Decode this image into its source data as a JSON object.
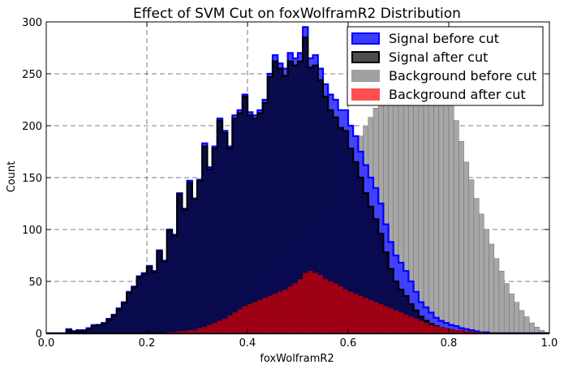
{
  "chart_data": {
    "type": "histogram",
    "title": "Effect of SVM Cut on foxWolframR2 Distribution",
    "xlabel": "foxWolframR2",
    "ylabel": "Count",
    "xlim": [
      0.0,
      1.0
    ],
    "ylim": [
      0,
      300
    ],
    "xticks": [
      "0.0",
      "0.2",
      "0.4",
      "0.6",
      "0.8",
      "1.0"
    ],
    "yticks": [
      "0",
      "50",
      "100",
      "150",
      "200",
      "250",
      "300"
    ],
    "grid": true,
    "legend_position": "upper-right",
    "bin_width": 0.01,
    "bin_start": 0.0,
    "series": [
      {
        "name": "Background before cut",
        "color": "#a0a0a0",
        "style": "filled",
        "values": [
          0,
          0,
          0,
          0,
          0,
          0,
          0,
          0,
          0,
          0,
          0,
          0,
          0,
          0,
          1,
          1,
          1,
          2,
          2,
          3,
          3,
          4,
          4,
          5,
          6,
          7,
          8,
          9,
          10,
          12,
          13,
          15,
          17,
          19,
          22,
          25,
          27,
          30,
          33,
          36,
          40,
          44,
          48,
          52,
          56,
          61,
          66,
          72,
          78,
          84,
          90,
          97,
          104,
          112,
          120,
          128,
          136,
          145,
          154,
          163,
          172,
          181,
          190,
          199,
          208,
          217,
          227,
          236,
          245,
          254,
          263,
          272,
          280,
          288,
          295,
          292,
          285,
          270,
          255,
          240,
          225,
          205,
          185,
          165,
          148,
          130,
          115,
          100,
          86,
          72,
          60,
          48,
          38,
          30,
          22,
          16,
          10,
          6,
          3,
          1
        ]
      },
      {
        "name": "Signal before cut",
        "color": "#0000ff",
        "style": "step-filled",
        "values": [
          0,
          0,
          0,
          0,
          4,
          2,
          3,
          3,
          5,
          8,
          8,
          10,
          14,
          18,
          24,
          30,
          40,
          45,
          55,
          58,
          65,
          60,
          80,
          70,
          100,
          95,
          135,
          120,
          147,
          130,
          148,
          183,
          160,
          180,
          207,
          195,
          180,
          210,
          215,
          230,
          213,
          210,
          215,
          225,
          250,
          268,
          260,
          255,
          270,
          265,
          270,
          295,
          265,
          268,
          255,
          240,
          230,
          225,
          215,
          215,
          200,
          190,
          175,
          162,
          150,
          140,
          125,
          105,
          88,
          75,
          68,
          60,
          50,
          40,
          30,
          25,
          20,
          15,
          12,
          10,
          8,
          7,
          5,
          4,
          3,
          2,
          1,
          1,
          0,
          0,
          0,
          0,
          0,
          0,
          0,
          0,
          0,
          0,
          0,
          0
        ]
      },
      {
        "name": "Signal after cut",
        "color": "#000000",
        "style": "step-filled",
        "values": [
          0,
          0,
          0,
          0,
          3,
          2,
          2,
          2,
          4,
          7,
          8,
          9,
          13,
          17,
          23,
          29,
          39,
          44,
          54,
          57,
          64,
          59,
          79,
          69,
          99,
          94,
          134,
          119,
          145,
          129,
          147,
          180,
          158,
          178,
          205,
          193,
          178,
          207,
          212,
          228,
          210,
          207,
          212,
          222,
          247,
          262,
          255,
          248,
          262,
          258,
          262,
          285,
          256,
          258,
          244,
          228,
          215,
          208,
          198,
          195,
          178,
          165,
          150,
          135,
          122,
          110,
          96,
          78,
          62,
          50,
          42,
          36,
          28,
          22,
          16,
          12,
          9,
          7,
          5,
          4,
          3,
          2,
          2,
          1,
          1,
          0,
          0,
          0,
          0,
          0,
          0,
          0,
          0,
          0,
          0,
          0,
          0,
          0,
          0,
          0
        ]
      },
      {
        "name": "Background after cut",
        "color": "#ff0000",
        "style": "filled",
        "values": [
          0,
          0,
          0,
          0,
          0,
          0,
          0,
          0,
          0,
          0,
          0,
          0,
          0,
          0,
          0,
          0,
          0,
          0,
          0,
          0,
          0,
          0,
          0,
          0,
          1,
          1,
          2,
          2,
          3,
          3,
          5,
          6,
          8,
          10,
          12,
          14,
          17,
          20,
          23,
          26,
          28,
          30,
          32,
          34,
          36,
          38,
          40,
          42,
          45,
          48,
          52,
          58,
          60,
          58,
          56,
          52,
          50,
          48,
          45,
          42,
          40,
          38,
          36,
          34,
          32,
          30,
          28,
          26,
          24,
          22,
          20,
          18,
          16,
          14,
          12,
          10,
          8,
          7,
          6,
          5,
          4,
          3,
          3,
          2,
          2,
          1,
          1,
          0,
          0,
          0,
          0,
          0,
          0,
          0,
          0,
          0,
          0,
          0,
          0,
          0
        ]
      }
    ],
    "legend": [
      {
        "label": "Signal before cut",
        "color": "#3b3bff",
        "edge": "#0000ff"
      },
      {
        "label": "Signal after cut",
        "color": "#4d4d4d",
        "edge": "#000000"
      },
      {
        "label": "Background before cut",
        "color": "#a0a0a0",
        "edge": "#a0a0a0"
      },
      {
        "label": "Background after cut",
        "color": "#ff5050",
        "edge": "#ff5050"
      }
    ]
  }
}
